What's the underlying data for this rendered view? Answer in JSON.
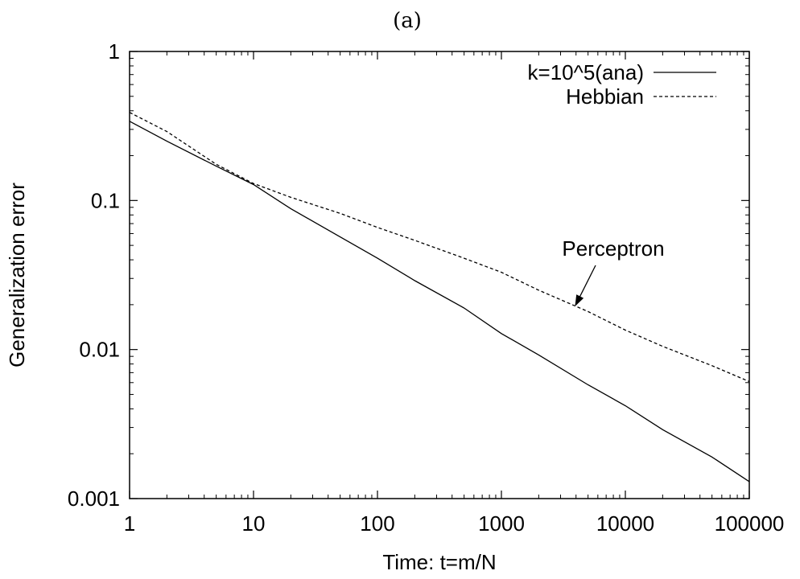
{
  "chart_data": {
    "type": "line",
    "title": "(a)",
    "xlabel": "Time: t=m/N",
    "ylabel": "Generalization error",
    "x_scale": "log",
    "y_scale": "log",
    "xlim": [
      1,
      100000
    ],
    "ylim": [
      0.001,
      1
    ],
    "x_ticks": [
      1,
      10,
      100,
      1000,
      10000,
      100000
    ],
    "x_tick_labels": [
      "1",
      "10",
      "100",
      "1000",
      "10000",
      "100000"
    ],
    "y_ticks": [
      0.001,
      0.01,
      0.1,
      1
    ],
    "y_tick_labels": [
      "0.001",
      "0.01",
      "0.1",
      "1"
    ],
    "grid": false,
    "legend_position": "top-right",
    "series": [
      {
        "name": "k=10^5(ana)",
        "style": "solid",
        "x": [
          1,
          2,
          5,
          10,
          20,
          50,
          100,
          200,
          500,
          1000,
          2000,
          5000,
          10000,
          20000,
          50000,
          100000
        ],
        "y": [
          0.34,
          0.25,
          0.17,
          0.128,
          0.088,
          0.057,
          0.041,
          0.029,
          0.019,
          0.0128,
          0.0092,
          0.0058,
          0.0042,
          0.0029,
          0.0019,
          0.0013
        ]
      },
      {
        "name": "Hebbian",
        "style": "dashed",
        "x": [
          1,
          2,
          5,
          10,
          20,
          50,
          100,
          200,
          500,
          1000,
          2000,
          5000,
          10000,
          20000,
          50000,
          100000
        ],
        "y": [
          0.39,
          0.29,
          0.175,
          0.13,
          0.105,
          0.082,
          0.066,
          0.054,
          0.041,
          0.033,
          0.025,
          0.018,
          0.0135,
          0.0105,
          0.0078,
          0.0061
        ]
      }
    ],
    "annotations": [
      {
        "text": "Perceptron",
        "arrow_to": {
          "x": 3800,
          "y": 0.0185
        }
      }
    ]
  },
  "colors": {
    "line": "#000000",
    "background": "#ffffff"
  }
}
